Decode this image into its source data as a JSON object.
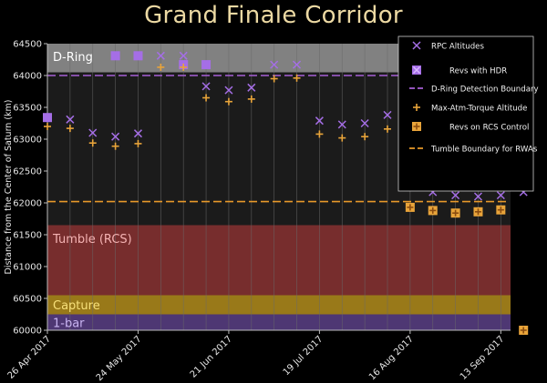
{
  "title": "Grand Finale Corridor",
  "chart_data": {
    "type": "scatter",
    "title": "Grand Finale Corridor",
    "ylabel": "Distance from the Center of Saturn (km)",
    "xlabel": "",
    "ylim": [
      60000,
      64500
    ],
    "xlim": [
      0,
      143
    ],
    "yticks": [
      60000,
      60500,
      61000,
      61500,
      62000,
      62500,
      63000,
      63500,
      64000,
      64500
    ],
    "xticks": [
      {
        "label": "26 Apr 2017",
        "day": 0
      },
      {
        "label": "24 May 2017",
        "day": 28
      },
      {
        "label": "21 Jun 2017",
        "day": 56
      },
      {
        "label": "19 Jul 2017",
        "day": 84
      },
      {
        "label": "16 Aug 2017",
        "day": 112
      },
      {
        "label": "13 Sep 2017",
        "day": 140
      }
    ],
    "regions": [
      {
        "name": "D-Ring",
        "from": 64050,
        "to": 64500,
        "color": "#ffffff"
      },
      {
        "name": "Tumble (RCS)",
        "from": 60550,
        "to": 61650,
        "color": "#b53a3a"
      },
      {
        "name": "Capture",
        "from": 60250,
        "to": 60550,
        "color": "#c49a1a"
      },
      {
        "name": "1-bar",
        "from": 60000,
        "to": 60250,
        "color": "#5b3f8a"
      }
    ],
    "lines": [
      {
        "name": "D-Ring Detection Boundary",
        "value": 64000,
        "color": "#a75fd6"
      },
      {
        "name": "Tumble Boundary for RWAs",
        "value": 62020,
        "color": "#e89a2a"
      }
    ],
    "series": [
      {
        "name": "RPC Altitudes",
        "marker": "x",
        "color": "#a56ee6",
        "x": [
          0,
          7,
          14,
          21,
          28,
          35,
          42,
          49,
          56,
          63,
          70,
          77,
          84,
          91,
          98,
          105,
          112,
          119,
          126,
          133,
          140,
          147
        ],
        "y": [
          63340,
          63310,
          63100,
          63040,
          63090,
          64310,
          64310,
          63830,
          63770,
          63810,
          64170,
          64170,
          63290,
          63230,
          63250,
          63380,
          63410,
          62170,
          62120,
          62100,
          62120,
          62170
        ]
      },
      {
        "name": "Revs with HDR",
        "marker": "square",
        "color": "#a56ee6",
        "x": [
          0,
          21,
          28,
          42,
          49
        ],
        "y": [
          63340,
          64310,
          64310,
          64170,
          64170
        ]
      },
      {
        "name": "Max-Atm-Torque Altitude",
        "marker": "plus",
        "color": "#e8a43a",
        "x": [
          0,
          7,
          14,
          21,
          28,
          35,
          42,
          49,
          56,
          63,
          70,
          77,
          84,
          91,
          98,
          105
        ],
        "y": [
          63200,
          63170,
          62940,
          62890,
          62930,
          64130,
          64130,
          63650,
          63590,
          63630,
          63950,
          63960,
          63080,
          63020,
          63040,
          63160
        ]
      },
      {
        "name": "Revs on RCS Control",
        "marker": "square",
        "color": "#e8a43a",
        "x": [
          112,
          119,
          126,
          133,
          140,
          147
        ],
        "y": [
          61930,
          61880,
          61840,
          61860,
          61890,
          60000
        ]
      }
    ],
    "legend": {
      "placement": "top-right",
      "entries": [
        "RPC Altitudes",
        "Revs with HDR",
        "D-Ring Detection Boundary",
        "Max-Atm-Torque Altitude",
        "Revs on RCS Control",
        "Tumble Boundary for RWAs"
      ]
    },
    "grid": true
  }
}
